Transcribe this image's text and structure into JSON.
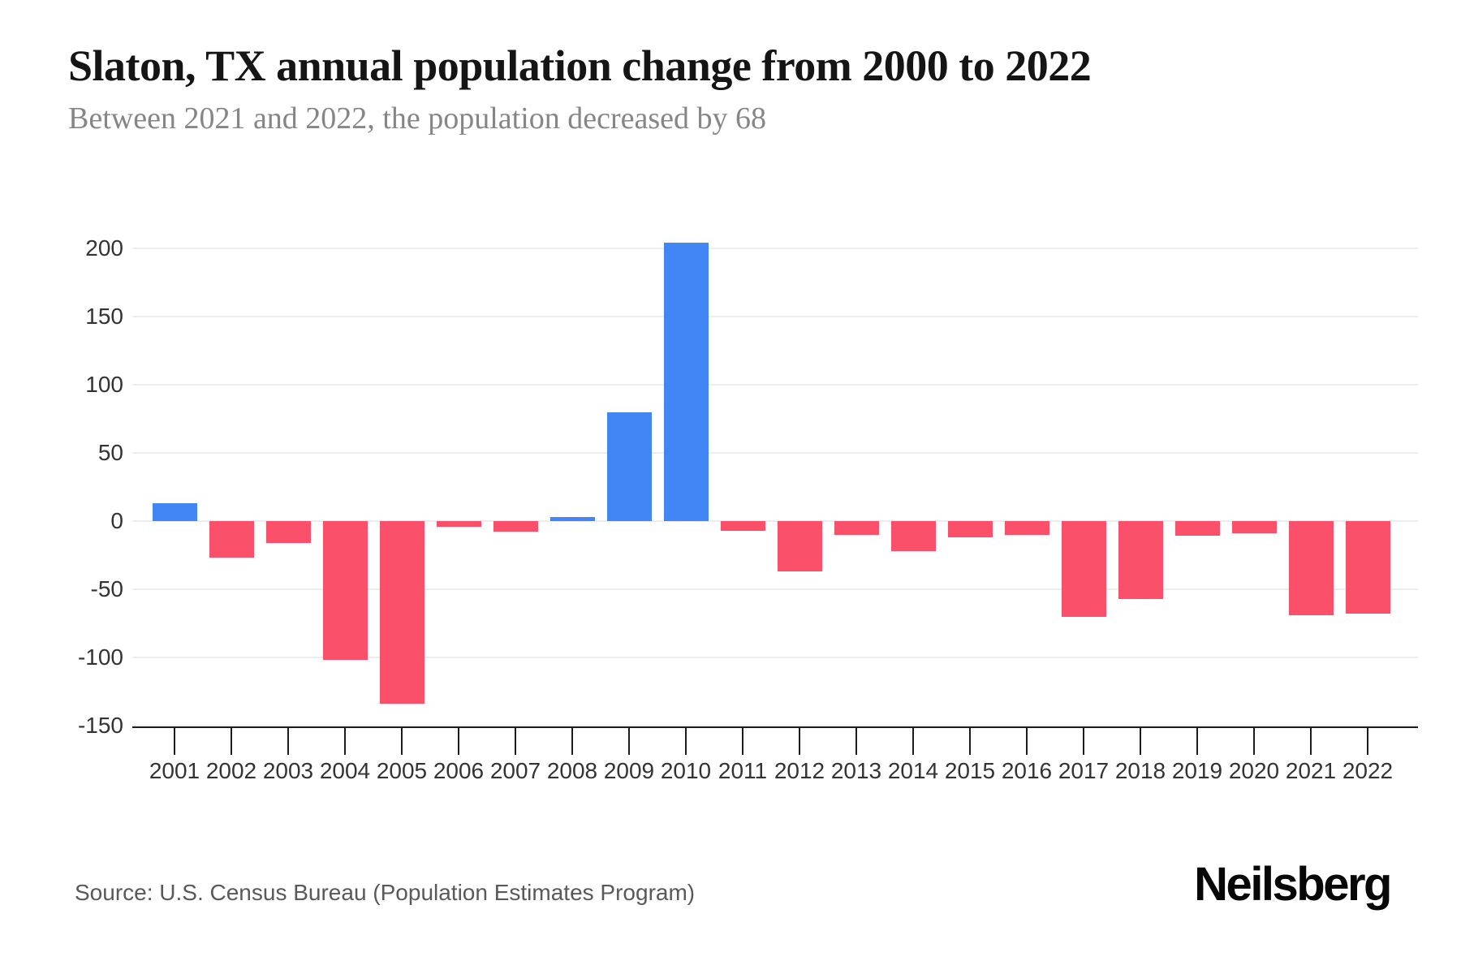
{
  "header": {
    "title": "Slaton, TX annual population change from 2000 to 2022",
    "subtitle": "Between 2021 and 2022, the population decreased by 68"
  },
  "footer": {
    "source": "Source: U.S. Census Bureau (Population Estimates Program)",
    "brand": "Neilsberg"
  },
  "chart_data": {
    "type": "bar",
    "title": "Slaton, TX annual population change from 2000 to 2022",
    "subtitle": "Between 2021 and 2022, the population decreased by 68",
    "xlabel": "",
    "ylabel": "",
    "categories": [
      "2001",
      "2002",
      "2003",
      "2004",
      "2005",
      "2006",
      "2007",
      "2008",
      "2009",
      "2010",
      "2011",
      "2012",
      "2013",
      "2014",
      "2015",
      "2016",
      "2017",
      "2018",
      "2019",
      "2020",
      "2021",
      "2022"
    ],
    "values": [
      13,
      -27,
      -16,
      -102,
      -134,
      -4,
      -8,
      3,
      80,
      204,
      -7,
      -37,
      -10,
      -22,
      -12,
      -10,
      -70,
      -57,
      -11,
      -9,
      -69,
      -68
    ],
    "yticks": [
      200,
      150,
      100,
      50,
      0,
      -50,
      -100,
      -150
    ],
    "ylim": [
      -150,
      210
    ],
    "grid": true,
    "legend": false,
    "positive_color": "#4285F4",
    "negative_color": "#FA5069",
    "gridline_color": "#ededed",
    "axis_color": "#1c1c1c",
    "tick_label_color": "#333333"
  }
}
